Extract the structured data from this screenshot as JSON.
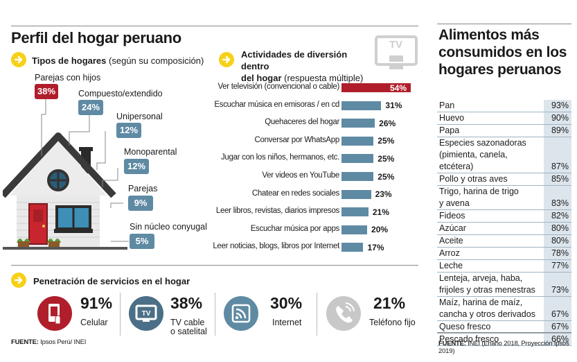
{
  "main_title": "Perfil del hogar peruano",
  "household_types": {
    "heading": "Tipos de hogares",
    "heading_note": "(según su composición)",
    "items": [
      {
        "label": "Parejas con hijos",
        "value": "38%"
      },
      {
        "label": "Compuesto/extendido",
        "value": "24%"
      },
      {
        "label": "Unipersonal",
        "value": "12%"
      },
      {
        "label": "Monoparental",
        "value": "12%"
      },
      {
        "label": "Parejas",
        "value": "9%"
      },
      {
        "label": "Sin núcleo conyugal",
        "value": "5%"
      }
    ]
  },
  "activities": {
    "heading_line1": "Actividades de diversión dentro",
    "heading_line2": "del hogar",
    "heading_note": "(respuesta múltiple)",
    "tv_icon_text": "TV"
  },
  "chart_data": {
    "type": "bar",
    "orientation": "horizontal",
    "categories": [
      "Ver televisión (convencional o cable)",
      "Escuchar música en emisoras / en cd",
      "Quehaceres del hogar",
      "Conversar por WhatsApp",
      "Jugar con los niños, hermanos, etc.",
      "Ver videos en YouTube",
      "Chatear en redes sociales",
      "Leer libros, revistas, diarios impresos",
      "Escuchar música por apps",
      "Leer noticias, blogs, libros por Internet"
    ],
    "values": [
      54,
      31,
      26,
      25,
      25,
      25,
      23,
      21,
      20,
      17
    ],
    "value_labels": [
      "54%",
      "31%",
      "26%",
      "25%",
      "25%",
      "25%",
      "23%",
      "21%",
      "20%",
      "17%"
    ],
    "highlight_index": 0,
    "xlim": [
      0,
      54
    ]
  },
  "services": {
    "heading": "Penetración de servicios en el hogar",
    "items": [
      {
        "value": "91%",
        "label_lines": [
          "Celular"
        ],
        "icon": "mobile-phone-icon",
        "color": "#b01e2b"
      },
      {
        "value": "38%",
        "label_lines": [
          "TV cable",
          "o satelital"
        ],
        "icon": "tv-icon",
        "color": "#4b6f86"
      },
      {
        "value": "30%",
        "label_lines": [
          "Internet"
        ],
        "icon": "wifi-icon",
        "color": "#5f8aa3"
      },
      {
        "value": "21%",
        "label_lines": [
          "Teléfono fijo"
        ],
        "icon": "phone-icon",
        "color": "#c8c8c8"
      }
    ]
  },
  "source_left": {
    "label": "FUENTE:",
    "text": "Ipsos Perú/ INEI"
  },
  "foods": {
    "title_lines": [
      "Alimentos más",
      "consumidos en los",
      "hogares peruanos"
    ],
    "rows": [
      {
        "lines": [
          "Pan"
        ],
        "value": "93%"
      },
      {
        "lines": [
          "Huevo"
        ],
        "value": "90%"
      },
      {
        "lines": [
          "Papa"
        ],
        "value": "89%"
      },
      {
        "lines": [
          "Especies sazonadoras",
          "(pimienta, canela, etcétera)"
        ],
        "value": "87%"
      },
      {
        "lines": [
          "Pollo y otras aves"
        ],
        "value": "85%"
      },
      {
        "lines": [
          "Trigo, harina de trigo",
          "y avena"
        ],
        "value": "83%"
      },
      {
        "lines": [
          "Fideos"
        ],
        "value": "82%"
      },
      {
        "lines": [
          "Azúcar"
        ],
        "value": "80%"
      },
      {
        "lines": [
          "Aceite"
        ],
        "value": "80%"
      },
      {
        "lines": [
          "Arroz"
        ],
        "value": "78%"
      },
      {
        "lines": [
          "Leche"
        ],
        "value": "77%"
      },
      {
        "lines": [
          "Lenteja, arveja, haba,",
          "frijoles y otras menestras"
        ],
        "value": "73%"
      },
      {
        "lines": [
          "Maíz, harina de maíz,",
          "cancha y otros derivados"
        ],
        "value": "67%"
      },
      {
        "lines": [
          "Queso fresco"
        ],
        "value": "67%"
      },
      {
        "lines": [
          "Pescado fresco"
        ],
        "value": "66%"
      }
    ]
  },
  "source_right": {
    "label": "FUENTE:",
    "text": "INEI (Enaho 2018, Proyección Ipsos 2019)"
  },
  "colors": {
    "accent_red": "#b01e2b",
    "steel_blue": "#5f8aa3",
    "yellow": "#f7d117"
  }
}
